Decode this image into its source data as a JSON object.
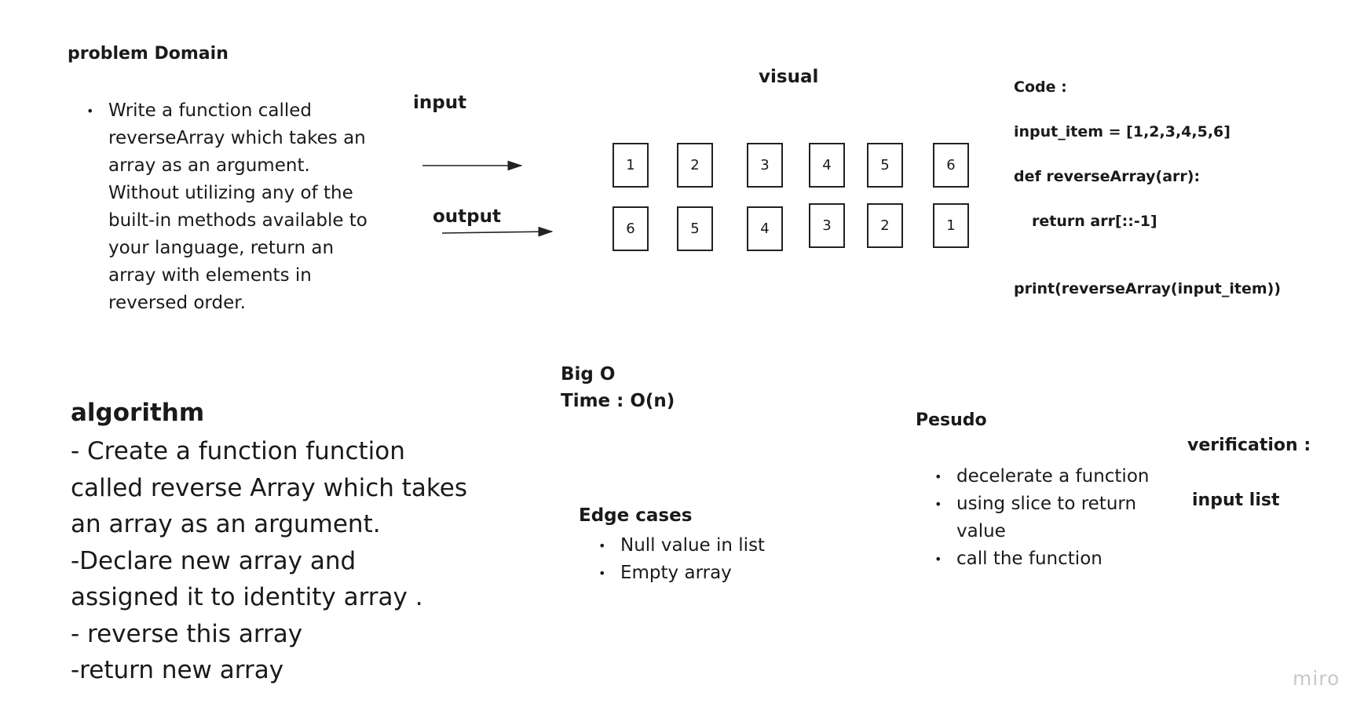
{
  "problem_domain": {
    "title": "problem Domain",
    "bullets": [
      "Write a function called reverseArray which takes an array as an argument. Without utilizing any of the built-in methods available to your language, return an array with elements in reversed order."
    ]
  },
  "algorithm": {
    "title": "algorithm",
    "lines": [
      "- Create a function function",
      "called reverse Array which takes",
      "an array as an argument.",
      "-Declare new array and",
      "assigned it to identity array .",
      "- reverse this array",
      "-return new array"
    ]
  },
  "visual": {
    "title": "visual",
    "input_label": "input",
    "output_label": "output",
    "input_row": [
      "1",
      "2",
      "3",
      "4",
      "5",
      "6"
    ],
    "output_row": [
      "6",
      "5",
      "4",
      "3",
      "2",
      "1"
    ]
  },
  "code": {
    "heading": "Code :",
    "lines": [
      "input_item = [1,2,3,4,5,6]",
      "def reverseArray(arr):",
      "return arr[::-1]",
      "print(reverseArray(input_item))"
    ]
  },
  "big_o": {
    "title": "Big O",
    "time": "Time : O(n)"
  },
  "edge_cases": {
    "title": "Edge cases",
    "items": [
      "Null value in list",
      "Empty array"
    ]
  },
  "pseudo": {
    "title": "Pesudo",
    "items": [
      "decelerate a function",
      "using slice to return value",
      "call the function"
    ]
  },
  "verification": {
    "title": "verification :",
    "input_label": "input list"
  },
  "watermark": "miro"
}
